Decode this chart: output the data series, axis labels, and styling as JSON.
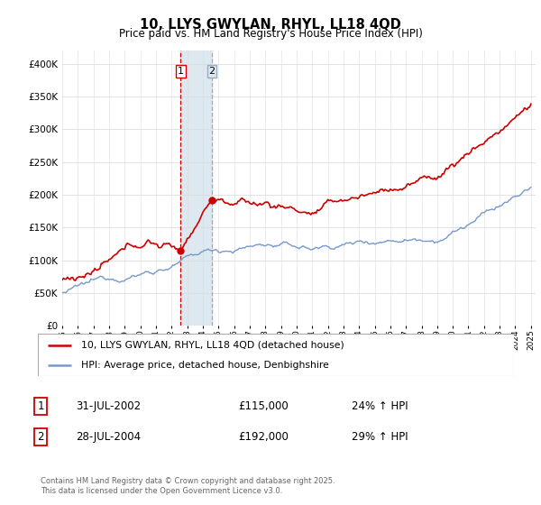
{
  "title": "10, LLYS GWYLAN, RHYL, LL18 4QD",
  "subtitle": "Price paid vs. HM Land Registry's House Price Index (HPI)",
  "ylim": [
    0,
    420000
  ],
  "yticks": [
    0,
    50000,
    100000,
    150000,
    200000,
    250000,
    300000,
    350000,
    400000
  ],
  "ytick_labels": [
    "£0",
    "£50K",
    "£100K",
    "£150K",
    "£200K",
    "£250K",
    "£300K",
    "£350K",
    "£400K"
  ],
  "sale1_date": 2002.583,
  "sale1_price": 115000,
  "sale2_date": 2004.583,
  "sale2_price": 192000,
  "sale1_table": "31-JUL-2002",
  "sale1_amount": "£115,000",
  "sale1_hpi": "24% ↑ HPI",
  "sale2_table": "28-JUL-2004",
  "sale2_amount": "£192,000",
  "sale2_hpi": "29% ↑ HPI",
  "legend_line1": "10, LLYS GWYLAN, RHYL, LL18 4QD (detached house)",
  "legend_line2": "HPI: Average price, detached house, Denbighshire",
  "line1_color": "#cc0000",
  "line2_color": "#7799cc",
  "vline1_color": "#cc0000",
  "vline2_color": "#99aabb",
  "shade_color": "#dde8f0",
  "footer": "Contains HM Land Registry data © Crown copyright and database right 2025.\nThis data is licensed under the Open Government Licence v3.0.",
  "grid_color": "#dddddd"
}
